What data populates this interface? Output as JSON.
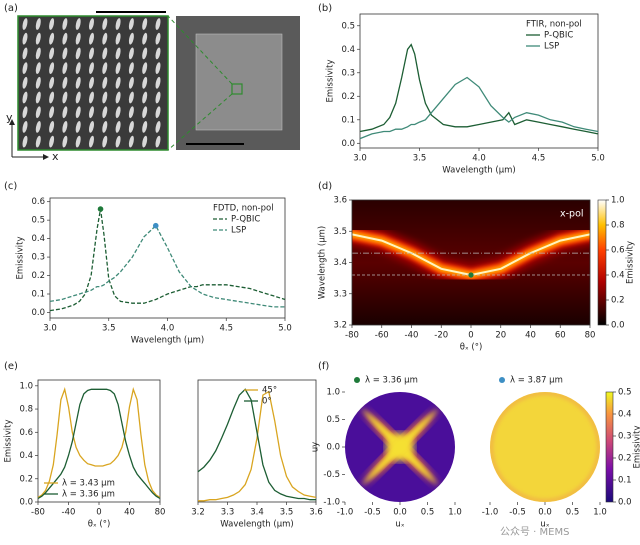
{
  "panel_a": {
    "label": "(a)",
    "y_axis": "y",
    "x_axis": "x"
  },
  "watermark": "公众号 · MEMS",
  "chart_data": [
    {
      "type": "line",
      "panel": "(b)",
      "xlabel": "Wavelength (μm)",
      "ylabel": "Emissivity",
      "legend_title": "FTIR, non-pol",
      "legend": "upper right",
      "dashed": false,
      "x": [
        3.0,
        3.1,
        3.2,
        3.25,
        3.3,
        3.35,
        3.4,
        3.43,
        3.46,
        3.5,
        3.55,
        3.6,
        3.7,
        3.8,
        3.9,
        4.0,
        4.1,
        4.2,
        4.25,
        4.3,
        4.4,
        4.5,
        4.6,
        4.7,
        4.8,
        4.9,
        5.0
      ],
      "series": [
        {
          "name": "P-QBIC",
          "color": "#1d5e34",
          "values": [
            0.05,
            0.06,
            0.08,
            0.11,
            0.17,
            0.28,
            0.4,
            0.42,
            0.38,
            0.27,
            0.17,
            0.12,
            0.08,
            0.07,
            0.07,
            0.08,
            0.09,
            0.1,
            0.13,
            0.08,
            0.1,
            0.09,
            0.08,
            0.07,
            0.06,
            0.05,
            0.04
          ]
        },
        {
          "name": "LSP",
          "color": "#3f8a78",
          "values": [
            0.02,
            0.04,
            0.05,
            0.05,
            0.06,
            0.06,
            0.07,
            0.08,
            0.08,
            0.09,
            0.1,
            0.13,
            0.19,
            0.25,
            0.28,
            0.24,
            0.16,
            0.11,
            0.09,
            0.11,
            0.13,
            0.12,
            0.1,
            0.09,
            0.07,
            0.06,
            0.05
          ]
        }
      ],
      "xlim": [
        3,
        5
      ],
      "xticks": [
        {
          "value": 3,
          "label": "3.0"
        },
        3.5,
        {
          "value": 4,
          "label": "4.0"
        },
        4.5,
        {
          "value": 5,
          "label": "5.0"
        }
      ],
      "ylim": [
        -0.02,
        0.55
      ],
      "yticks": [
        {
          "value": 0,
          "label": "0.0"
        },
        0.1,
        0.2,
        0.3,
        0.4,
        0.5
      ]
    },
    {
      "type": "line",
      "panel": "(c)",
      "xlabel": "Wavelength (μm)",
      "ylabel": "Emissivity",
      "legend_title": "FDTD, non-pol",
      "legend": "upper right",
      "dashed": true,
      "x": [
        3.0,
        3.1,
        3.2,
        3.25,
        3.3,
        3.35,
        3.4,
        3.43,
        3.46,
        3.5,
        3.55,
        3.6,
        3.7,
        3.8,
        3.9,
        4.0,
        4.1,
        4.2,
        4.25,
        4.3,
        4.4,
        4.5,
        4.6,
        4.7,
        4.8,
        4.9,
        5.0
      ],
      "series": [
        {
          "name": "P-QBIC",
          "color": "#1d5e34",
          "values": [
            0.01,
            0.02,
            0.04,
            0.06,
            0.1,
            0.2,
            0.45,
            0.56,
            0.42,
            0.18,
            0.09,
            0.06,
            0.05,
            0.05,
            0.07,
            0.1,
            0.12,
            0.14,
            0.14,
            0.15,
            0.15,
            0.15,
            0.14,
            0.13,
            0.11,
            0.09,
            0.07
          ]
        },
        {
          "name": "LSP",
          "color": "#3f8a78",
          "values": [
            0.06,
            0.07,
            0.09,
            0.1,
            0.11,
            0.12,
            0.14,
            0.14,
            0.15,
            0.17,
            0.19,
            0.22,
            0.3,
            0.41,
            0.47,
            0.35,
            0.22,
            0.14,
            0.12,
            0.1,
            0.08,
            0.07,
            0.06,
            0.05,
            0.04,
            0.03,
            0.03
          ]
        }
      ],
      "peaks": [
        {
          "x": 3.43,
          "y": 0.56,
          "color": "#1f7a3a"
        },
        {
          "x": 3.9,
          "y": 0.47,
          "color": "#3d8fc4"
        }
      ],
      "xlim": [
        3,
        5
      ],
      "xticks": [
        {
          "value": 3,
          "label": "3.0"
        },
        3.5,
        {
          "value": 4,
          "label": "4.0"
        },
        4.5,
        {
          "value": 5,
          "label": "5.0"
        }
      ],
      "ylim": [
        -0.03,
        0.62
      ],
      "yticks": [
        {
          "value": 0,
          "label": "0.0"
        },
        0.1,
        0.2,
        0.3,
        0.4,
        0.5,
        0.6
      ]
    },
    {
      "type": "heatmap",
      "panel": "(d)",
      "xlabel": "θₓ (°)",
      "ylabel": "Wavelength (μm)",
      "annotation": "x-pol",
      "ridge": {
        "x": [
          -80,
          -60,
          -40,
          -20,
          0,
          20,
          40,
          60,
          80
        ],
        "y": [
          3.49,
          3.47,
          3.43,
          3.38,
          3.36,
          3.38,
          3.43,
          3.47,
          3.49
        ]
      },
      "hlines": [
        3.36,
        3.43
      ],
      "point": {
        "x": 0,
        "y": 3.36,
        "color": "#1f7a3a"
      },
      "xlim": [
        -80,
        80
      ],
      "xticks": [
        -80,
        -60,
        -40,
        -20,
        0,
        20,
        40,
        60,
        80
      ],
      "ylim": [
        3.2,
        3.6
      ],
      "yticks": [
        3.2,
        3.3,
        3.4,
        3.5,
        3.6
      ],
      "colorbar": {
        "label": "Emissivity",
        "lim": [
          0,
          1
        ],
        "ticks": [
          {
            "value": 0,
            "label": "0.0"
          },
          0.2,
          0.4,
          0.6,
          0.8,
          {
            "value": 1,
            "label": "1.0"
          }
        ]
      }
    },
    {
      "type": "line",
      "panel": "(e)",
      "xlabel": "θₓ (°)",
      "ylabel": "Emissivity",
      "legend": "lower left",
      "dashed": false,
      "x": [
        -80,
        -75,
        -70,
        -65,
        -60,
        -55,
        -50,
        -45,
        -40,
        -35,
        -30,
        -25,
        -20,
        -15,
        -10,
        -5,
        0,
        5,
        10,
        15,
        20,
        25,
        30,
        35,
        40,
        45,
        50,
        55,
        60,
        65,
        70,
        75,
        80
      ],
      "series": [
        {
          "name": "λ = 3.43 μm",
          "color": "#d9a520",
          "values": [
            0.04,
            0.06,
            0.1,
            0.18,
            0.32,
            0.58,
            0.88,
            0.97,
            0.82,
            0.6,
            0.47,
            0.4,
            0.36,
            0.33,
            0.32,
            0.31,
            0.31,
            0.31,
            0.32,
            0.33,
            0.36,
            0.4,
            0.47,
            0.6,
            0.82,
            0.97,
            0.88,
            0.58,
            0.32,
            0.18,
            0.1,
            0.06,
            0.04
          ]
        },
        {
          "name": "λ = 3.36 μm",
          "color": "#1d5e34",
          "values": [
            0.03,
            0.05,
            0.08,
            0.12,
            0.16,
            0.2,
            0.24,
            0.3,
            0.4,
            0.52,
            0.68,
            0.84,
            0.93,
            0.96,
            0.97,
            0.97,
            0.97,
            0.97,
            0.97,
            0.96,
            0.93,
            0.84,
            0.68,
            0.52,
            0.4,
            0.3,
            0.24,
            0.2,
            0.16,
            0.12,
            0.08,
            0.05,
            0.03
          ]
        }
      ],
      "xlim": [
        -80,
        80
      ],
      "xticks": [
        -80,
        -40,
        0,
        40,
        80
      ],
      "ylim": [
        0,
        1.05
      ],
      "yticks": [
        {
          "value": 0,
          "label": "0.0"
        },
        0.2,
        0.4,
        0.6,
        0.8,
        {
          "value": 1,
          "label": "1.0"
        }
      ]
    },
    {
      "type": "line",
      "xlabel": "Wavelength (μm)",
      "legend": "upper right",
      "dashed": false,
      "x": [
        3.2,
        3.22,
        3.24,
        3.26,
        3.28,
        3.3,
        3.32,
        3.34,
        3.36,
        3.38,
        3.4,
        3.42,
        3.44,
        3.46,
        3.48,
        3.5,
        3.52,
        3.54,
        3.56,
        3.58,
        3.6
      ],
      "series": [
        {
          "name": "45°",
          "color": "#d9a520",
          "values": [
            0.01,
            0.01,
            0.02,
            0.02,
            0.03,
            0.04,
            0.06,
            0.09,
            0.15,
            0.28,
            0.55,
            0.92,
            0.95,
            0.7,
            0.4,
            0.22,
            0.13,
            0.09,
            0.06,
            0.05,
            0.04
          ]
        },
        {
          "name": "0°",
          "color": "#1d5e34",
          "values": [
            0.26,
            0.3,
            0.36,
            0.44,
            0.55,
            0.67,
            0.8,
            0.92,
            0.97,
            0.88,
            0.6,
            0.32,
            0.17,
            0.1,
            0.07,
            0.05,
            0.04,
            0.03,
            0.03,
            0.02,
            0.02
          ]
        }
      ],
      "xlim": [
        3.2,
        3.6
      ],
      "xticks": [
        3.2,
        3.3,
        3.4,
        3.5,
        3.6
      ],
      "ylim": [
        0,
        1.05
      ]
    },
    {
      "type": "disk",
      "panel": "(f)",
      "xlabel": "uₓ",
      "ylabel": "uy",
      "panels": [
        {
          "title": "λ = 3.36 μm",
          "marker_color": "#1f7a3a"
        },
        {
          "title": "λ = 3.87 μm",
          "marker_color": "#3d8fc4"
        }
      ],
      "xlim": [
        -1,
        1
      ],
      "xticks": [
        {
          "value": -1,
          "label": "-1.0"
        },
        -0.5,
        {
          "value": 0,
          "label": "0.0"
        },
        0.5,
        {
          "value": 1,
          "label": "1.0"
        }
      ],
      "ylim": [
        -1,
        1
      ],
      "yticks": [
        {
          "value": -1,
          "label": "-1.0"
        },
        -0.5,
        {
          "value": 0,
          "label": "0.0"
        },
        0.5,
        {
          "value": 1,
          "label": "1.0"
        }
      ],
      "colorbar": {
        "label": "Emissivity",
        "lim": [
          0,
          0.5
        ],
        "ticks": [
          {
            "value": 0,
            "label": "0.0"
          },
          0.1,
          0.2,
          0.3,
          0.4,
          0.5
        ]
      }
    }
  ]
}
